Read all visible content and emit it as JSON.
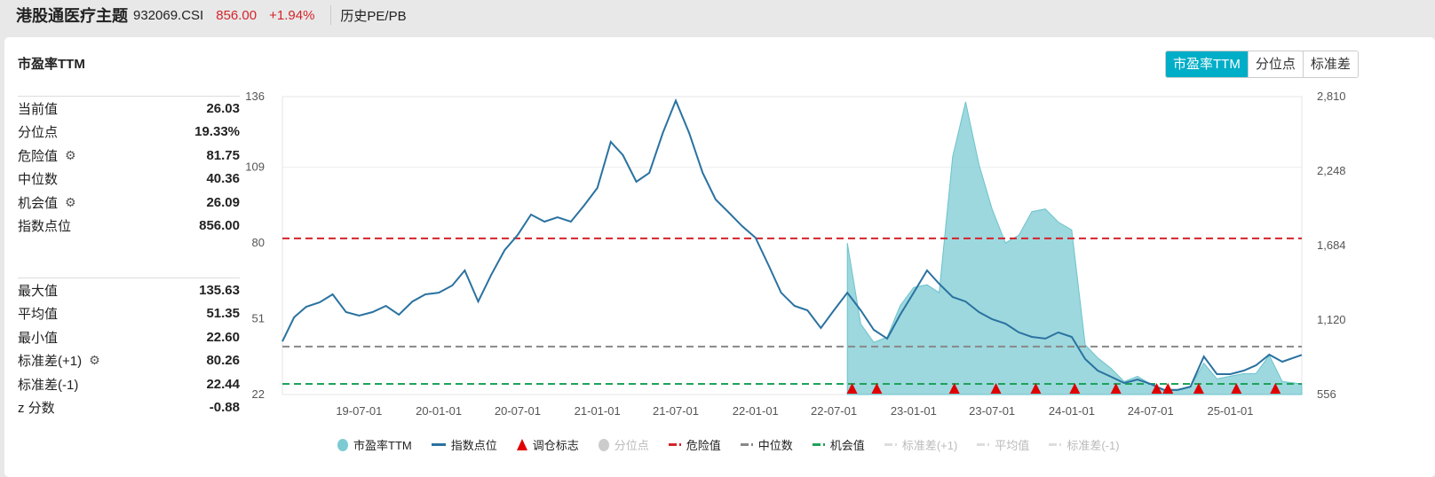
{
  "header": {
    "name": "港股通医疗主题",
    "code": "932069.CSI",
    "price": "856.00",
    "change": "+1.94%",
    "section": "历史PE/PB",
    "price_color": "#d4232b"
  },
  "card": {
    "title": "市盈率TTM",
    "tabs": [
      {
        "label": "市盈率TTM",
        "active": true
      },
      {
        "label": "分位点",
        "active": false
      },
      {
        "label": "标准差",
        "active": false
      }
    ],
    "accent": "#00aec7"
  },
  "stats_top": [
    {
      "label": "当前值",
      "value": "26.03"
    },
    {
      "label": "分位点",
      "value": "19.33%"
    },
    {
      "label": "危险值",
      "value": "81.75",
      "gear": true
    },
    {
      "label": "中位数",
      "value": "40.36"
    },
    {
      "label": "机会值",
      "value": "26.09",
      "gear": true
    },
    {
      "label": "指数点位",
      "value": "856.00"
    }
  ],
  "stats_bottom": [
    {
      "label": "最大值",
      "value": "135.63"
    },
    {
      "label": "平均值",
      "value": "51.35"
    },
    {
      "label": "最小值",
      "value": "22.60"
    },
    {
      "label": "标准差(+1)",
      "value": "80.26",
      "gear": true
    },
    {
      "label": "标准差(-1)",
      "value": "22.44"
    },
    {
      "label": "z 分数",
      "value": "-0.88"
    }
  ],
  "chart_data": {
    "type": "line",
    "x_range": [
      "2019-01-05",
      "2025-06-15"
    ],
    "x_ticks": [
      "19-07-01",
      "20-01-01",
      "20-07-01",
      "21-01-01",
      "21-07-01",
      "22-01-01",
      "22-07-01",
      "23-01-01",
      "23-07-01",
      "24-01-01",
      "24-07-01",
      "25-01-01"
    ],
    "y_left": {
      "ticks": [
        136,
        109,
        80,
        51,
        22
      ],
      "range": [
        22,
        136
      ]
    },
    "y_right": {
      "ticks": [
        "2,810",
        "2,248",
        "1,684",
        "1,120",
        "556"
      ],
      "range": [
        556,
        2810
      ]
    },
    "grid": false,
    "legend_position": "bottom",
    "series": [
      {
        "name": "市盈率TTM",
        "type": "area",
        "axis": "left",
        "color": "#7ccbd3",
        "points": [
          [
            "2022-08-01",
            80
          ],
          [
            "2022-09-01",
            49
          ],
          [
            "2022-10-01",
            42
          ],
          [
            "2022-11-01",
            44
          ],
          [
            "2022-12-01",
            56
          ],
          [
            "2023-01-01",
            63
          ],
          [
            "2023-02-01",
            64
          ],
          [
            "2023-03-01",
            61
          ],
          [
            "2023-04-01",
            113
          ],
          [
            "2023-05-01",
            134
          ],
          [
            "2023-06-01",
            110
          ],
          [
            "2023-07-01",
            93
          ],
          [
            "2023-08-01",
            80
          ],
          [
            "2023-09-01",
            83
          ],
          [
            "2023-10-01",
            92
          ],
          [
            "2023-11-01",
            93
          ],
          [
            "2023-12-01",
            88
          ],
          [
            "2024-01-01",
            85
          ],
          [
            "2024-02-01",
            41
          ],
          [
            "2024-03-01",
            36
          ],
          [
            "2024-04-01",
            32
          ],
          [
            "2024-05-01",
            27
          ],
          [
            "2024-06-01",
            29
          ],
          [
            "2024-07-01",
            26
          ],
          [
            "2024-08-01",
            24
          ],
          [
            "2024-09-01",
            24
          ],
          [
            "2024-10-01",
            25
          ],
          [
            "2024-11-01",
            34
          ],
          [
            "2024-12-01",
            28
          ],
          [
            "2025-01-01",
            29
          ],
          [
            "2025-02-01",
            30
          ],
          [
            "2025-03-01",
            30
          ],
          [
            "2025-04-01",
            37
          ],
          [
            "2025-05-01",
            27
          ],
          [
            "2025-06-15",
            26.03
          ]
        ]
      },
      {
        "name": "指数点位",
        "type": "line",
        "axis": "right",
        "color": "#2a72a0",
        "points": [
          [
            "2019-01-05",
            958
          ],
          [
            "2019-02-01",
            1140
          ],
          [
            "2019-03-01",
            1220
          ],
          [
            "2019-04-01",
            1254
          ],
          [
            "2019-05-01",
            1314
          ],
          [
            "2019-06-01",
            1180
          ],
          [
            "2019-07-01",
            1153
          ],
          [
            "2019-08-01",
            1180
          ],
          [
            "2019-09-01",
            1227
          ],
          [
            "2019-10-01",
            1160
          ],
          [
            "2019-11-01",
            1260
          ],
          [
            "2019-12-01",
            1314
          ],
          [
            "2020-01-01",
            1327
          ],
          [
            "2020-02-01",
            1381
          ],
          [
            "2020-03-01",
            1495
          ],
          [
            "2020-04-01",
            1260
          ],
          [
            "2020-05-01",
            1462
          ],
          [
            "2020-06-01",
            1649
          ],
          [
            "2020-07-01",
            1763
          ],
          [
            "2020-08-01",
            1918
          ],
          [
            "2020-09-01",
            1864
          ],
          [
            "2020-10-01",
            1898
          ],
          [
            "2020-11-01",
            1864
          ],
          [
            "2020-12-01",
            1985
          ],
          [
            "2021-01-01",
            2119
          ],
          [
            "2021-02-01",
            2468
          ],
          [
            "2021-03-01",
            2367
          ],
          [
            "2021-04-01",
            2166
          ],
          [
            "2021-05-01",
            2233
          ],
          [
            "2021-06-01",
            2535
          ],
          [
            "2021-07-01",
            2780
          ],
          [
            "2021-08-01",
            2535
          ],
          [
            "2021-09-01",
            2233
          ],
          [
            "2021-10-01",
            2032
          ],
          [
            "2021-11-01",
            1931
          ],
          [
            "2021-12-01",
            1831
          ],
          [
            "2022-01-01",
            1743
          ],
          [
            "2022-02-01",
            1529
          ],
          [
            "2022-03-01",
            1327
          ],
          [
            "2022-04-01",
            1227
          ],
          [
            "2022-05-01",
            1193
          ],
          [
            "2022-06-01",
            1059
          ],
          [
            "2022-07-01",
            1193
          ],
          [
            "2022-08-01",
            1327
          ],
          [
            "2022-09-01",
            1193
          ],
          [
            "2022-10-01",
            1046
          ],
          [
            "2022-11-01",
            979
          ],
          [
            "2022-12-01",
            1160
          ],
          [
            "2023-01-01",
            1327
          ],
          [
            "2023-02-01",
            1495
          ],
          [
            "2023-03-01",
            1394
          ],
          [
            "2023-04-01",
            1294
          ],
          [
            "2023-05-01",
            1260
          ],
          [
            "2023-06-01",
            1180
          ],
          [
            "2023-07-01",
            1126
          ],
          [
            "2023-08-01",
            1093
          ],
          [
            "2023-09-01",
            1026
          ],
          [
            "2023-10-01",
            992
          ],
          [
            "2023-11-01",
            979
          ],
          [
            "2023-12-01",
            1026
          ],
          [
            "2024-01-01",
            992
          ],
          [
            "2024-02-01",
            824
          ],
          [
            "2024-03-01",
            737
          ],
          [
            "2024-04-01",
            690
          ],
          [
            "2024-05-01",
            643
          ],
          [
            "2024-06-01",
            670
          ],
          [
            "2024-07-01",
            636
          ],
          [
            "2024-08-01",
            590
          ],
          [
            "2024-09-01",
            590
          ],
          [
            "2024-10-01",
            616
          ],
          [
            "2024-11-01",
            844
          ],
          [
            "2024-12-01",
            710
          ],
          [
            "2025-01-01",
            710
          ],
          [
            "2025-02-01",
            737
          ],
          [
            "2025-03-01",
            777
          ],
          [
            "2025-04-01",
            858
          ],
          [
            "2025-05-01",
            804
          ],
          [
            "2025-06-15",
            856
          ]
        ]
      }
    ],
    "rebalance_markers": {
      "name": "调仓标志",
      "color": "#e00000",
      "dates": [
        "2022-08-12",
        "2022-10-08",
        "2023-04-05",
        "2023-07-10",
        "2023-10-10",
        "2024-01-08",
        "2024-04-12",
        "2024-07-15",
        "2024-08-10",
        "2024-10-20",
        "2025-01-15",
        "2025-04-15"
      ]
    },
    "ref_lines": [
      {
        "name": "危险值",
        "value": 81.75,
        "color": "#d4232b"
      },
      {
        "name": "中位数",
        "value": 40.36,
        "color": "#888888"
      },
      {
        "name": "机会值",
        "value": 26.09,
        "color": "#1ea35a"
      }
    ],
    "legend": [
      {
        "label": "市盈率TTM",
        "kind": "dot",
        "color": "#7ccbd3",
        "active": true
      },
      {
        "label": "指数点位",
        "kind": "line",
        "color": "#2a72a0",
        "active": true
      },
      {
        "label": "调仓标志",
        "kind": "tri",
        "color": "#e00000",
        "active": true
      },
      {
        "label": "分位点",
        "kind": "dot",
        "color": "#cccccc",
        "active": false
      },
      {
        "label": "危险值",
        "kind": "dash",
        "color": "#d4232b",
        "active": true
      },
      {
        "label": "中位数",
        "kind": "dash",
        "color": "#888888",
        "active": true
      },
      {
        "label": "机会值",
        "kind": "dash",
        "color": "#1ea35a",
        "active": true
      },
      {
        "label": "标准差(+1)",
        "kind": "dash",
        "color": "#dddddd",
        "active": false
      },
      {
        "label": "平均值",
        "kind": "dash",
        "color": "#dddddd",
        "active": false
      },
      {
        "label": "标准差(-1)",
        "kind": "dash",
        "color": "#dddddd",
        "active": false
      }
    ]
  }
}
